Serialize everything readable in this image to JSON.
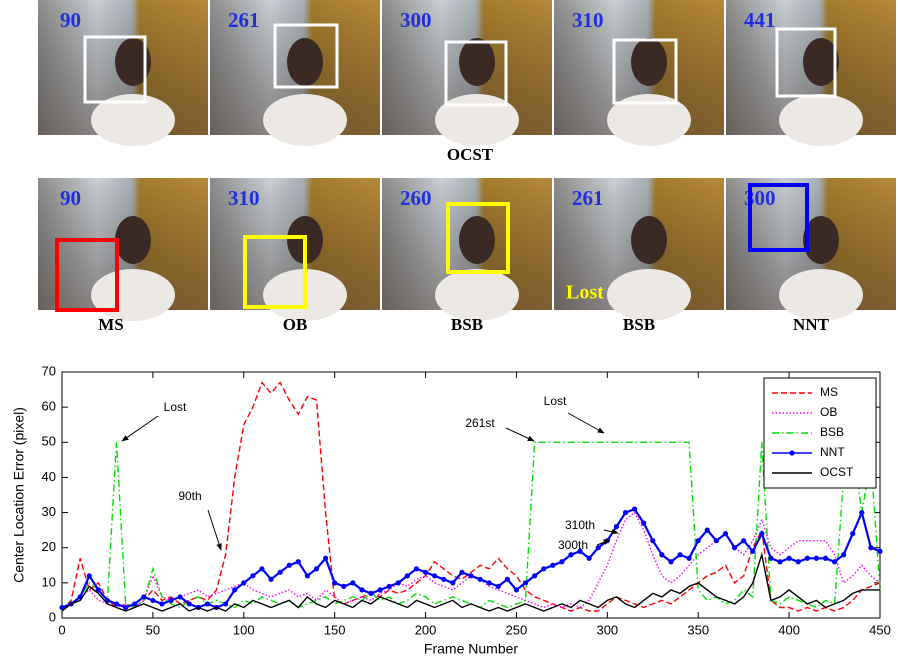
{
  "panels": {
    "ocst": {
      "frames": [
        90,
        261,
        300,
        310,
        441
      ],
      "label": "OCST"
    },
    "comparison": {
      "frames": [
        90,
        310,
        260,
        261,
        300
      ],
      "methods": [
        "MS",
        "OB",
        "BSB",
        "BSB",
        "NNT"
      ],
      "lost_label": "Lost"
    }
  },
  "chart_data": {
    "type": "line",
    "xlabel": "Frame Number",
    "ylabel": "Center Location Error (pixel)",
    "xlim": [
      0,
      450
    ],
    "xticks": [
      0,
      50,
      100,
      150,
      200,
      250,
      300,
      350,
      400,
      450
    ],
    "ylim": [
      0,
      70
    ],
    "yticks": [
      0,
      10,
      20,
      30,
      40,
      50,
      60,
      70
    ],
    "grid": false,
    "legend": "upper right",
    "annotations": [
      "Lost",
      "90th",
      "Lost",
      "261st",
      "310th",
      "300th"
    ],
    "x": [
      0,
      5,
      10,
      15,
      20,
      25,
      30,
      35,
      40,
      45,
      50,
      55,
      60,
      65,
      70,
      75,
      80,
      85,
      90,
      95,
      100,
      105,
      110,
      115,
      120,
      125,
      130,
      135,
      140,
      145,
      150,
      155,
      160,
      165,
      170,
      175,
      180,
      185,
      190,
      195,
      200,
      205,
      210,
      215,
      220,
      225,
      230,
      235,
      240,
      245,
      250,
      255,
      260,
      265,
      270,
      275,
      280,
      285,
      290,
      295,
      300,
      305,
      310,
      315,
      320,
      325,
      330,
      335,
      340,
      345,
      350,
      355,
      360,
      365,
      370,
      375,
      380,
      385,
      390,
      395,
      400,
      405,
      410,
      415,
      420,
      425,
      430,
      435,
      440,
      445,
      450
    ],
    "series": [
      {
        "name": "MS",
        "color": "#ff0000",
        "line_style": "dashed",
        "values": [
          2,
          5,
          17,
          8,
          10,
          5,
          3,
          4,
          3,
          5,
          8,
          5,
          6,
          4,
          5,
          6,
          5,
          8,
          18,
          40,
          55,
          60,
          67,
          64,
          67,
          62,
          58,
          63,
          62,
          30,
          5,
          4,
          5,
          6,
          7,
          6,
          8,
          7,
          8,
          10,
          12,
          16,
          14,
          12,
          11,
          13,
          15,
          14,
          17,
          14,
          12,
          8,
          6,
          5,
          4,
          3,
          2,
          3,
          2,
          2,
          4,
          6,
          5,
          4,
          3,
          4,
          5,
          4,
          6,
          8,
          10,
          12,
          13,
          15,
          10,
          12,
          20,
          25,
          5,
          3,
          3,
          2,
          3,
          2,
          3,
          2,
          3,
          5,
          8,
          9,
          10
        ]
      },
      {
        "name": "OB",
        "color": "#ff00ff",
        "line_style": "dotted",
        "values": [
          2,
          4,
          6,
          8,
          5,
          4,
          3,
          4,
          3,
          5,
          12,
          6,
          5,
          6,
          7,
          8,
          6,
          7,
          8,
          9,
          10,
          8,
          7,
          6,
          7,
          8,
          6,
          7,
          5,
          8,
          6,
          4,
          5,
          6,
          5,
          7,
          8,
          10,
          9,
          11,
          12,
          10,
          9,
          8,
          10,
          12,
          11,
          9,
          8,
          7,
          6,
          5,
          4,
          3,
          4,
          3,
          4,
          3,
          5,
          10,
          15,
          22,
          28,
          30,
          25,
          18,
          12,
          10,
          12,
          15,
          18,
          20,
          22,
          24,
          20,
          18,
          22,
          28,
          20,
          18,
          20,
          22,
          22,
          22,
          22,
          18,
          10,
          12,
          15,
          12,
          10
        ]
      },
      {
        "name": "BSB",
        "color": "#00e000",
        "line_style": "dashdot",
        "values": [
          2,
          4,
          6,
          10,
          8,
          5,
          50,
          4,
          3,
          5,
          14,
          6,
          4,
          3,
          5,
          6,
          4,
          5,
          4,
          3,
          5,
          4,
          6,
          5,
          4,
          5,
          3,
          4,
          5,
          6,
          4,
          5,
          6,
          5,
          7,
          5,
          6,
          4,
          5,
          7,
          6,
          4,
          5,
          6,
          5,
          4,
          3,
          5,
          4,
          3,
          4,
          5,
          50,
          50,
          50,
          50,
          50,
          50,
          50,
          50,
          50,
          50,
          50,
          50,
          50,
          50,
          50,
          50,
          50,
          50,
          8,
          5,
          6,
          4,
          5,
          8,
          6,
          50,
          5,
          4,
          6,
          5,
          4,
          3,
          5,
          4,
          40,
          50,
          30,
          45,
          8
        ]
      },
      {
        "name": "NNT",
        "color": "#0000ff",
        "line_style": "solid",
        "markers": true,
        "values": [
          3,
          4,
          6,
          12,
          8,
          5,
          4,
          3,
          4,
          6,
          5,
          4,
          5,
          6,
          4,
          3,
          4,
          3,
          4,
          8,
          10,
          12,
          14,
          11,
          13,
          15,
          16,
          12,
          14,
          17,
          10,
          9,
          10,
          8,
          7,
          8,
          9,
          10,
          12,
          14,
          13,
          12,
          11,
          10,
          13,
          12,
          11,
          10,
          9,
          11,
          8,
          10,
          12,
          14,
          15,
          16,
          18,
          19,
          17,
          20,
          22,
          26,
          30,
          31,
          27,
          22,
          18,
          16,
          18,
          17,
          22,
          25,
          22,
          24,
          20,
          22,
          19,
          24,
          17,
          16,
          17,
          16,
          17,
          17,
          17,
          16,
          18,
          24,
          30,
          20,
          19
        ]
      },
      {
        "name": "OCST",
        "color": "#000000",
        "line_style": "solid",
        "values": [
          2,
          4,
          5,
          9,
          7,
          4,
          3,
          2,
          3,
          4,
          3,
          2,
          3,
          4,
          2,
          3,
          2,
          3,
          2,
          4,
          3,
          5,
          4,
          3,
          4,
          5,
          3,
          6,
          4,
          3,
          5,
          4,
          3,
          5,
          4,
          6,
          5,
          4,
          3,
          5,
          4,
          3,
          4,
          5,
          3,
          4,
          3,
          2,
          3,
          2,
          3,
          4,
          3,
          2,
          3,
          4,
          3,
          5,
          4,
          3,
          5,
          6,
          4,
          3,
          5,
          7,
          6,
          8,
          7,
          9,
          10,
          8,
          6,
          5,
          4,
          6,
          10,
          18,
          5,
          6,
          8,
          6,
          4,
          5,
          3,
          4,
          5,
          7,
          8,
          8,
          8
        ]
      }
    ]
  }
}
